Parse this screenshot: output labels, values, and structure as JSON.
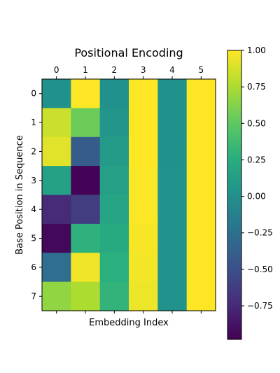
{
  "chart_data": {
    "type": "heatmap",
    "title": "Positional Encoding",
    "xlabel": "Embedding Index",
    "ylabel": "Base Position in Sequence",
    "x_ticks": [
      "0",
      "1",
      "2",
      "3",
      "4",
      "5"
    ],
    "y_ticks": [
      "0",
      "1",
      "2",
      "3",
      "4",
      "5",
      "6",
      "7"
    ],
    "values": [
      [
        0.0,
        1.0,
        0.0,
        1.0,
        0.0,
        1.0
      ],
      [
        0.84,
        0.54,
        0.04,
        1.0,
        0.0,
        1.0
      ],
      [
        0.91,
        -0.42,
        0.09,
        1.0,
        0.0,
        1.0
      ],
      [
        0.14,
        -0.99,
        0.13,
        0.99,
        0.01,
        1.0
      ],
      [
        -0.76,
        -0.65,
        0.17,
        0.99,
        0.01,
        1.0
      ],
      [
        -0.96,
        0.28,
        0.21,
        0.98,
        0.01,
        1.0
      ],
      [
        -0.28,
        0.96,
        0.26,
        0.97,
        0.01,
        1.0
      ],
      [
        0.66,
        0.75,
        0.3,
        0.95,
        0.01,
        1.0
      ]
    ],
    "colormap": "viridis",
    "vmin": -1.0,
    "vmax": 1.0,
    "colorbar_ticks": [
      "1.00",
      "0.75",
      "0.50",
      "0.25",
      "0.00",
      "−0.25",
      "−0.50",
      "−0.75"
    ],
    "colorbar_tick_values": [
      1.0,
      0.75,
      0.5,
      0.25,
      0.0,
      -0.25,
      -0.5,
      -0.75
    ],
    "x_tick_position": "top",
    "grid": false
  }
}
